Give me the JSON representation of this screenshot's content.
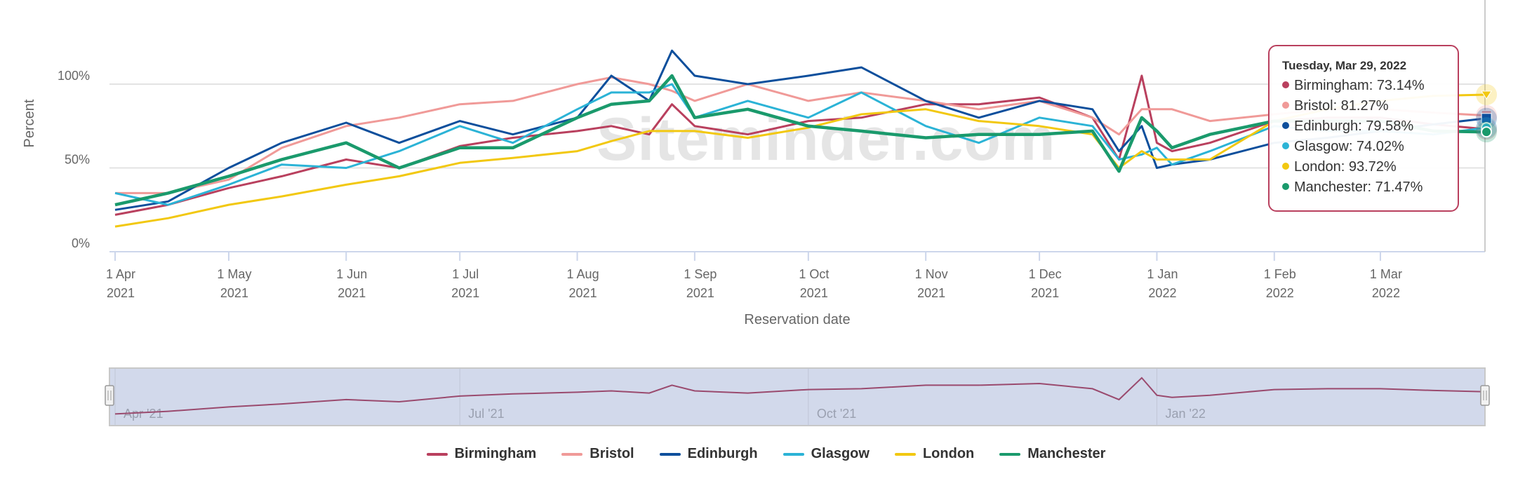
{
  "watermark": "Siteminder.com",
  "tooltip": {
    "title": "Tuesday, Mar 29, 2022",
    "rows": [
      {
        "label": "Birmingham: 73.14%"
      },
      {
        "label": "Bristol: 81.27%"
      },
      {
        "label": "Edinburgh: 79.58%"
      },
      {
        "label": "Glasgow: 74.02%"
      },
      {
        "label": "London: 93.72%"
      },
      {
        "label": "Manchester: 71.47%"
      }
    ]
  },
  "navigator": {
    "labels": [
      "Apr '21",
      "Jul '21",
      "Oct '21",
      "Jan '22"
    ]
  },
  "chart_data": {
    "type": "line",
    "xlabel": "Reservation date",
    "ylabel": "Percent",
    "ylim": [
      0,
      125
    ],
    "yticks": [
      "0%",
      "50%",
      "100%"
    ],
    "ytick_values": [
      0,
      50,
      100
    ],
    "xticks": [
      {
        "date": "2021-04-01",
        "l1": "1 Apr",
        "l2": "2021"
      },
      {
        "date": "2021-05-01",
        "l1": "1 May",
        "l2": "2021"
      },
      {
        "date": "2021-06-01",
        "l1": "1 Jun",
        "l2": "2021"
      },
      {
        "date": "2021-07-01",
        "l1": "1 Jul",
        "l2": "2021"
      },
      {
        "date": "2021-08-01",
        "l1": "1 Aug",
        "l2": "2021"
      },
      {
        "date": "2021-09-01",
        "l1": "1 Sep",
        "l2": "2021"
      },
      {
        "date": "2021-10-01",
        "l1": "1 Oct",
        "l2": "2021"
      },
      {
        "date": "2021-11-01",
        "l1": "1 Nov",
        "l2": "2021"
      },
      {
        "date": "2021-12-01",
        "l1": "1 Dec",
        "l2": "2021"
      },
      {
        "date": "2022-01-01",
        "l1": "1 Jan",
        "l2": "2022"
      },
      {
        "date": "2022-02-01",
        "l1": "1 Feb",
        "l2": "2022"
      },
      {
        "date": "2022-03-01",
        "l1": "1 Mar",
        "l2": "2022"
      }
    ],
    "grid": "horizontal",
    "legend": "bottom",
    "x": [
      "2021-04-01",
      "2021-04-15",
      "2021-05-01",
      "2021-05-15",
      "2021-06-01",
      "2021-06-15",
      "2021-07-01",
      "2021-07-15",
      "2021-08-01",
      "2021-08-10",
      "2021-08-20",
      "2021-08-26",
      "2021-09-01",
      "2021-09-15",
      "2021-10-01",
      "2021-10-15",
      "2021-11-01",
      "2021-11-15",
      "2021-12-01",
      "2021-12-15",
      "2021-12-22",
      "2021-12-28",
      "2022-01-01",
      "2022-01-05",
      "2022-01-15",
      "2022-02-01",
      "2022-02-15",
      "2022-03-01",
      "2022-03-15",
      "2022-03-29"
    ],
    "series": [
      {
        "name": "Birmingham",
        "color": "#b9405e",
        "values": [
          22,
          28,
          38,
          45,
          55,
          50,
          63,
          68,
          72,
          75,
          70,
          88,
          75,
          70,
          78,
          80,
          88,
          88,
          92,
          80,
          55,
          105,
          65,
          60,
          65,
          78,
          80,
          80,
          76,
          73.14
        ]
      },
      {
        "name": "Bristol",
        "color": "#f09a98",
        "values": [
          35,
          35,
          43,
          62,
          75,
          80,
          88,
          90,
          100,
          104,
          100,
          96,
          90,
          100,
          90,
          95,
          90,
          85,
          90,
          80,
          70,
          85,
          85,
          85,
          78,
          82,
          85,
          85,
          83,
          81.27
        ]
      },
      {
        "name": "Edinburgh",
        "color": "#0d4f9c",
        "values": [
          25,
          30,
          50,
          65,
          77,
          65,
          78,
          70,
          80,
          105,
          90,
          120,
          105,
          100,
          105,
          110,
          90,
          80,
          90,
          85,
          60,
          75,
          50,
          52,
          55,
          65,
          68,
          72,
          76,
          79.58
        ]
      },
      {
        "name": "Glasgow",
        "color": "#2bb3d6",
        "values": [
          35,
          28,
          40,
          52,
          50,
          60,
          75,
          65,
          85,
          95,
          95,
          100,
          80,
          90,
          80,
          95,
          75,
          65,
          80,
          75,
          55,
          58,
          62,
          52,
          60,
          75,
          72,
          72,
          70,
          74.02
        ]
      },
      {
        "name": "London",
        "color": "#f2c811",
        "values": [
          15,
          20,
          28,
          33,
          40,
          45,
          53,
          56,
          60,
          66,
          72,
          72,
          72,
          68,
          74,
          82,
          85,
          78,
          75,
          70,
          50,
          60,
          55,
          55,
          55,
          78,
          85,
          90,
          93,
          93.72
        ]
      },
      {
        "name": "Manchester",
        "color": "#1a9a6c",
        "values": [
          28,
          35,
          45,
          55,
          65,
          50,
          62,
          62,
          80,
          88,
          90,
          105,
          80,
          85,
          75,
          72,
          68,
          70,
          70,
          72,
          48,
          80,
          72,
          62,
          70,
          78,
          78,
          78,
          72,
          71.47
        ]
      }
    ]
  }
}
